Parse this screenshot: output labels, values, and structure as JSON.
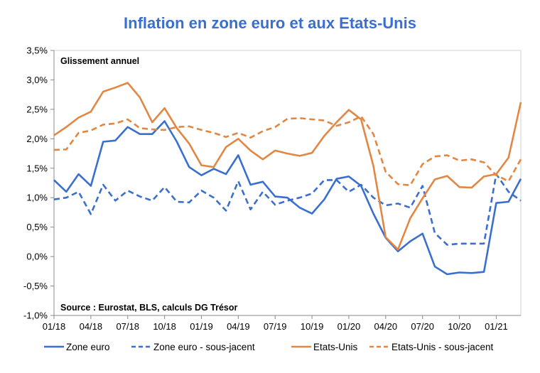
{
  "chart_data": {
    "type": "line",
    "title": "Inflation en zone euro et aux Etats-Unis",
    "inner_label": "Glissement annuel",
    "source": "Source : Eurostat, BLS, calculs DG Trésor",
    "ylim": [
      -1.0,
      3.5
    ],
    "y_ticks": [
      {
        "value": 3.5,
        "label": "3,5%"
      },
      {
        "value": 3.0,
        "label": "3,0%"
      },
      {
        "value": 2.5,
        "label": "2,5%"
      },
      {
        "value": 2.0,
        "label": "2,0%"
      },
      {
        "value": 1.5,
        "label": "1,5%"
      },
      {
        "value": 1.0,
        "label": "1,0%"
      },
      {
        "value": 0.5,
        "label": "0,5%"
      },
      {
        "value": 0.0,
        "label": "0,0%"
      },
      {
        "value": -0.5,
        "label": "-0,5%"
      },
      {
        "value": -1.0,
        "label": "-1,0%"
      }
    ],
    "x_ticks": [
      {
        "index": 0,
        "label": "01/18"
      },
      {
        "index": 3,
        "label": "04/18"
      },
      {
        "index": 6,
        "label": "07/18"
      },
      {
        "index": 9,
        "label": "10/18"
      },
      {
        "index": 12,
        "label": "01/19"
      },
      {
        "index": 15,
        "label": "04/19"
      },
      {
        "index": 18,
        "label": "07/19"
      },
      {
        "index": 21,
        "label": "10/19"
      },
      {
        "index": 24,
        "label": "01/20"
      },
      {
        "index": 27,
        "label": "04/20"
      },
      {
        "index": 30,
        "label": "07/20"
      },
      {
        "index": 33,
        "label": "10/20"
      },
      {
        "index": 36,
        "label": "01/21"
      }
    ],
    "months": [
      "01/18",
      "02/18",
      "03/18",
      "04/18",
      "05/18",
      "06/18",
      "07/18",
      "08/18",
      "09/18",
      "10/18",
      "11/18",
      "12/18",
      "01/19",
      "02/19",
      "03/19",
      "04/19",
      "05/19",
      "06/19",
      "07/19",
      "08/19",
      "09/19",
      "10/19",
      "11/19",
      "12/19",
      "01/20",
      "02/20",
      "03/20",
      "04/20",
      "05/20",
      "06/20",
      "07/20",
      "08/20",
      "09/20",
      "10/20",
      "11/20",
      "12/20",
      "01/21",
      "02/21",
      "03/21"
    ],
    "series": [
      {
        "name": "Zone euro",
        "color": "#3a6fd0",
        "dash": "solid",
        "values": [
          1.3,
          1.1,
          1.4,
          1.2,
          1.95,
          1.97,
          2.2,
          2.08,
          2.08,
          2.3,
          1.95,
          1.52,
          1.38,
          1.49,
          1.4,
          1.72,
          1.22,
          1.27,
          1.02,
          1.0,
          0.83,
          0.73,
          0.97,
          1.32,
          1.36,
          1.2,
          0.73,
          0.32,
          0.09,
          0.26,
          0.39,
          -0.17,
          -0.3,
          -0.27,
          -0.28,
          -0.26,
          0.91,
          0.93,
          1.32
        ]
      },
      {
        "name": "Zone euro - sous-jacent",
        "color": "#3a6fd0",
        "dash": "dashed",
        "values": [
          0.97,
          1.0,
          1.1,
          0.72,
          1.22,
          0.95,
          1.12,
          1.02,
          0.95,
          1.18,
          0.93,
          0.92,
          1.12,
          1.0,
          0.78,
          1.28,
          0.8,
          1.1,
          0.88,
          0.95,
          1.0,
          1.07,
          1.3,
          1.3,
          1.1,
          1.22,
          1.0,
          0.87,
          0.9,
          0.83,
          1.2,
          0.4,
          0.2,
          0.22,
          0.22,
          0.22,
          1.4,
          1.1,
          0.95
        ]
      },
      {
        "name": "Etats-Unis",
        "color": "#e28743",
        "dash": "solid",
        "values": [
          2.06,
          2.2,
          2.36,
          2.46,
          2.8,
          2.87,
          2.95,
          2.7,
          2.28,
          2.52,
          2.18,
          1.92,
          1.55,
          1.52,
          1.86,
          2.0,
          1.8,
          1.65,
          1.8,
          1.75,
          1.71,
          1.76,
          2.05,
          2.28,
          2.49,
          2.33,
          1.54,
          0.33,
          0.12,
          0.65,
          0.99,
          1.31,
          1.37,
          1.18,
          1.17,
          1.36,
          1.4,
          1.68,
          2.62
        ]
      },
      {
        "name": "Etats-Unis - sous-jacent",
        "color": "#e28743",
        "dash": "dashed",
        "values": [
          1.81,
          1.82,
          2.1,
          2.14,
          2.24,
          2.26,
          2.33,
          2.18,
          2.16,
          2.15,
          2.2,
          2.21,
          2.15,
          2.1,
          2.03,
          2.1,
          2.02,
          2.13,
          2.2,
          2.34,
          2.35,
          2.33,
          2.31,
          2.22,
          2.28,
          2.38,
          2.08,
          1.44,
          1.23,
          1.21,
          1.57,
          1.7,
          1.72,
          1.63,
          1.65,
          1.6,
          1.38,
          1.28,
          1.65
        ]
      }
    ]
  }
}
